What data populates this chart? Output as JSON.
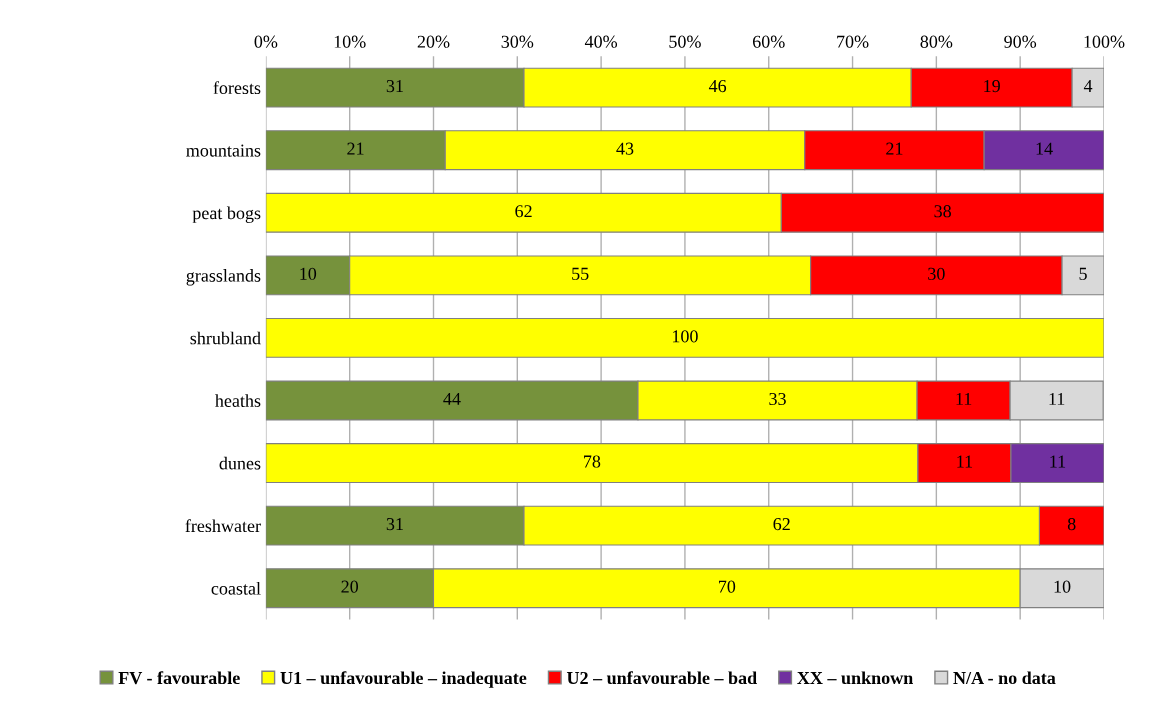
{
  "chart_data": {
    "type": "bar",
    "orientation": "horizontal",
    "stacked": true,
    "categories": [
      "forests",
      "mountains",
      "peat bogs",
      "grasslands",
      "shrubland",
      "heaths",
      "dunes",
      "freshwater",
      "coastal"
    ],
    "series": [
      {
        "name": "FV - favourable",
        "color": "#76923c",
        "values": [
          30.8,
          21.4,
          null,
          10,
          null,
          44.4,
          null,
          30.8,
          20
        ],
        "value_labels": [
          "31",
          "21",
          null,
          "10",
          null,
          "44",
          null,
          "31",
          "20"
        ]
      },
      {
        "name": "U1 – unfavourable – inadequate",
        "color": "#ffff00",
        "values": [
          46.2,
          42.9,
          61.5,
          55,
          100,
          33.3,
          77.8,
          61.5,
          70
        ],
        "value_labels": [
          "46",
          "43",
          "62",
          "55",
          "100",
          "33",
          "78",
          "62",
          "70"
        ]
      },
      {
        "name": "U2 – unfavourable – bad",
        "color": "#ff0000",
        "values": [
          19.2,
          21.4,
          38.5,
          30,
          null,
          11.1,
          11.1,
          7.7,
          null
        ],
        "value_labels": [
          "19",
          "21",
          "38",
          "30",
          null,
          "11",
          "11",
          "8",
          null
        ]
      },
      {
        "name": "XX – unknown",
        "color": "#7030a0",
        "values": [
          null,
          14.3,
          null,
          null,
          null,
          null,
          11.1,
          null,
          null
        ],
        "value_labels": [
          null,
          "14",
          null,
          null,
          null,
          null,
          "11",
          null,
          null
        ]
      },
      {
        "name": "N/A - no data",
        "color": "#d9d9d9",
        "values": [
          3.8,
          null,
          null,
          5,
          null,
          11.1,
          null,
          null,
          10
        ],
        "value_labels": [
          "4",
          null,
          null,
          "5",
          null,
          "11",
          null,
          null,
          "10"
        ]
      }
    ],
    "xlim": [
      0,
      100
    ],
    "xticks": [
      {
        "value": 0,
        "label": "0%"
      },
      {
        "value": 10,
        "label": "10%"
      },
      {
        "value": 20,
        "label": "20%"
      },
      {
        "value": 30,
        "label": "30%"
      },
      {
        "value": 40,
        "label": "40%"
      },
      {
        "value": 50,
        "label": "50%"
      },
      {
        "value": 60,
        "label": "60%"
      },
      {
        "value": 70,
        "label": "70%"
      },
      {
        "value": 80,
        "label": "80%"
      },
      {
        "value": 90,
        "label": "90%"
      },
      {
        "value": 100,
        "label": "100%"
      }
    ],
    "grid": "x",
    "legend": "bottom"
  }
}
